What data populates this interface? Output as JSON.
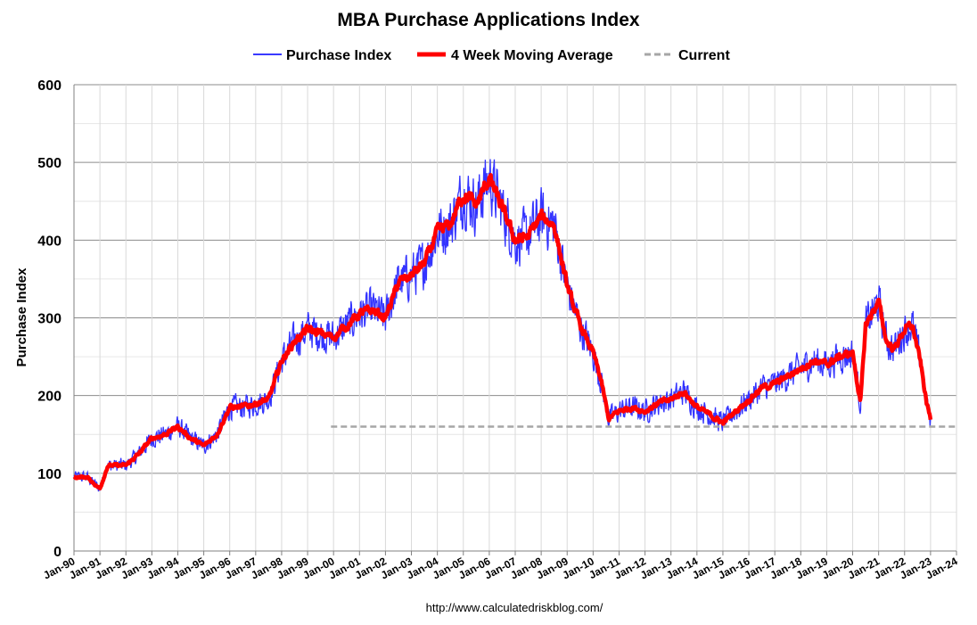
{
  "chart_data": {
    "type": "line",
    "title": "MBA Purchase Applications Index",
    "xlabel": "",
    "ylabel": "Purchase Index",
    "ylim": [
      0,
      600
    ],
    "yticks": [
      "0",
      "100",
      "200",
      "300",
      "400",
      "500",
      "600"
    ],
    "xticks": [
      "Jan-90",
      "Jan-91",
      "Jan-92",
      "Jan-93",
      "Jan-94",
      "Jan-95",
      "Jan-96",
      "Jan-97",
      "Jan-98",
      "Jan-99",
      "Jan-00",
      "Jan-01",
      "Jan-02",
      "Jan-03",
      "Jan-04",
      "Jan-05",
      "Jan-06",
      "Jan-07",
      "Jan-08",
      "Jan-09",
      "Jan-10",
      "Jan-11",
      "Jan-12",
      "Jan-13",
      "Jan-14",
      "Jan-15",
      "Jan-16",
      "Jan-17",
      "Jan-18",
      "Jan-19",
      "Jan-20",
      "Jan-21",
      "Jan-22",
      "Jan-23",
      "Jan-24"
    ],
    "xlim": [
      1990.0,
      2024.0
    ],
    "grid": "horizontal",
    "legend_position": "top",
    "source": "http://www.calculatedriskblog.com/",
    "series": [
      {
        "name": "4 Week Moving Average",
        "color": "#ff0000",
        "x": [
          1990.0,
          1990.5,
          1991.0,
          1991.3,
          1992.0,
          1992.5,
          1993.0,
          1993.5,
          1994.0,
          1994.5,
          1995.0,
          1995.5,
          1996.0,
          1996.5,
          1997.0,
          1997.5,
          1998.0,
          1998.5,
          1999.0,
          1999.5,
          2000.0,
          2000.5,
          2001.0,
          2001.5,
          2002.0,
          2002.5,
          2003.0,
          2003.5,
          2004.0,
          2004.5,
          2005.0,
          2005.5,
          2006.0,
          2006.5,
          2007.0,
          2007.5,
          2008.0,
          2008.5,
          2009.0,
          2009.5,
          2010.0,
          2010.3,
          2010.6,
          2011.0,
          2011.5,
          2012.0,
          2012.5,
          2013.0,
          2013.5,
          2014.0,
          2014.5,
          2015.0,
          2015.5,
          2016.0,
          2016.5,
          2017.0,
          2017.5,
          2018.0,
          2018.5,
          2019.0,
          2019.5,
          2020.0,
          2020.3,
          2020.5,
          2020.8,
          2021.0,
          2021.3,
          2021.6,
          2022.0,
          2022.3,
          2022.6,
          2022.85,
          2023.0
        ],
        "values": [
          95,
          95,
          80,
          110,
          110,
          125,
          145,
          150,
          160,
          145,
          135,
          150,
          185,
          185,
          190,
          195,
          245,
          270,
          285,
          280,
          275,
          290,
          305,
          310,
          300,
          345,
          355,
          370,
          410,
          420,
          460,
          445,
          480,
          440,
          400,
          405,
          430,
          420,
          340,
          290,
          255,
          220,
          170,
          180,
          185,
          180,
          190,
          195,
          205,
          185,
          175,
          165,
          180,
          195,
          210,
          215,
          225,
          235,
          245,
          240,
          250,
          255,
          190,
          290,
          310,
          320,
          270,
          260,
          285,
          290,
          245,
          190,
          170
        ]
      },
      {
        "name": "Purchase Index",
        "color": "#3333ff",
        "note_hidden": false
      },
      {
        "name": "Current",
        "color": "#a6a6a6",
        "x": [
          1999.9,
          2024.0
        ],
        "values": [
          160,
          160
        ]
      }
    ]
  }
}
